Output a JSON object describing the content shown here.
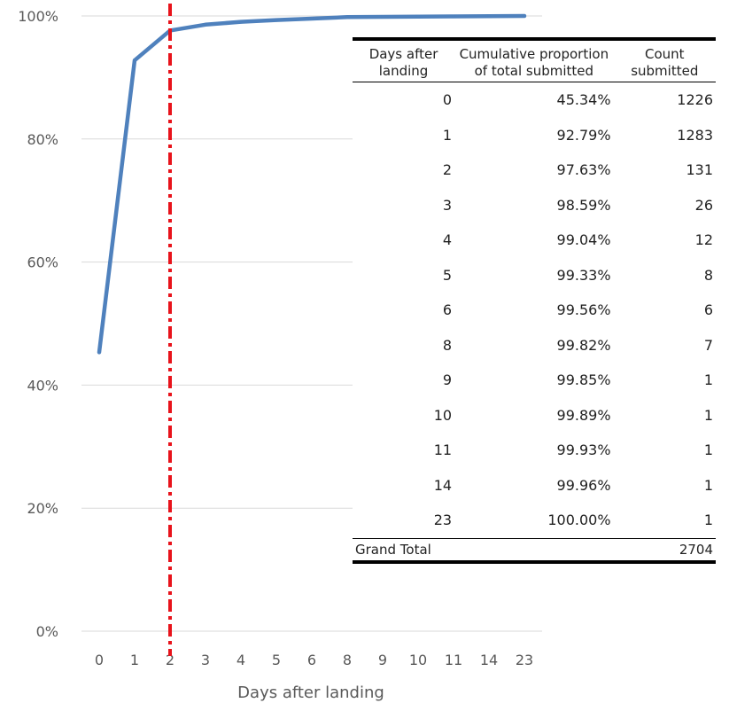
{
  "chart_data": {
    "type": "line",
    "title": "",
    "xlabel": "Days after landing",
    "ylabel": "",
    "categories": [
      "0",
      "1",
      "2",
      "3",
      "4",
      "5",
      "6",
      "8",
      "9",
      "10",
      "11",
      "14",
      "23"
    ],
    "series": [
      {
        "values": [
          45.34,
          92.79,
          97.63,
          98.59,
          99.04,
          99.33,
          99.56,
          99.82,
          99.85,
          99.89,
          99.93,
          99.96,
          100.0
        ]
      }
    ],
    "yticks": [
      "0%",
      "20%",
      "40%",
      "60%",
      "80%",
      "100%"
    ],
    "ylim": [
      0,
      100
    ],
    "grid": true,
    "reference_line": {
      "category": "2",
      "style": "dash-dot",
      "color": "#e8131b"
    },
    "line_color": "#4f81bd",
    "grid_color": "#d9d9d9"
  },
  "table": {
    "headers": [
      "Days after landing",
      "Cumulative proportion of total submitted",
      "Count submitted"
    ],
    "rows": [
      [
        "0",
        "45.34%",
        "1226"
      ],
      [
        "1",
        "92.79%",
        "1283"
      ],
      [
        "2",
        "97.63%",
        "131"
      ],
      [
        "3",
        "98.59%",
        "26"
      ],
      [
        "4",
        "99.04%",
        "12"
      ],
      [
        "5",
        "99.33%",
        "8"
      ],
      [
        "6",
        "99.56%",
        "6"
      ],
      [
        "8",
        "99.82%",
        "7"
      ],
      [
        "9",
        "99.85%",
        "1"
      ],
      [
        "10",
        "99.89%",
        "1"
      ],
      [
        "11",
        "99.93%",
        "1"
      ],
      [
        "14",
        "99.96%",
        "1"
      ],
      [
        "23",
        "100.00%",
        "1"
      ]
    ],
    "total_label": "Grand Total",
    "total_value": "2704"
  }
}
